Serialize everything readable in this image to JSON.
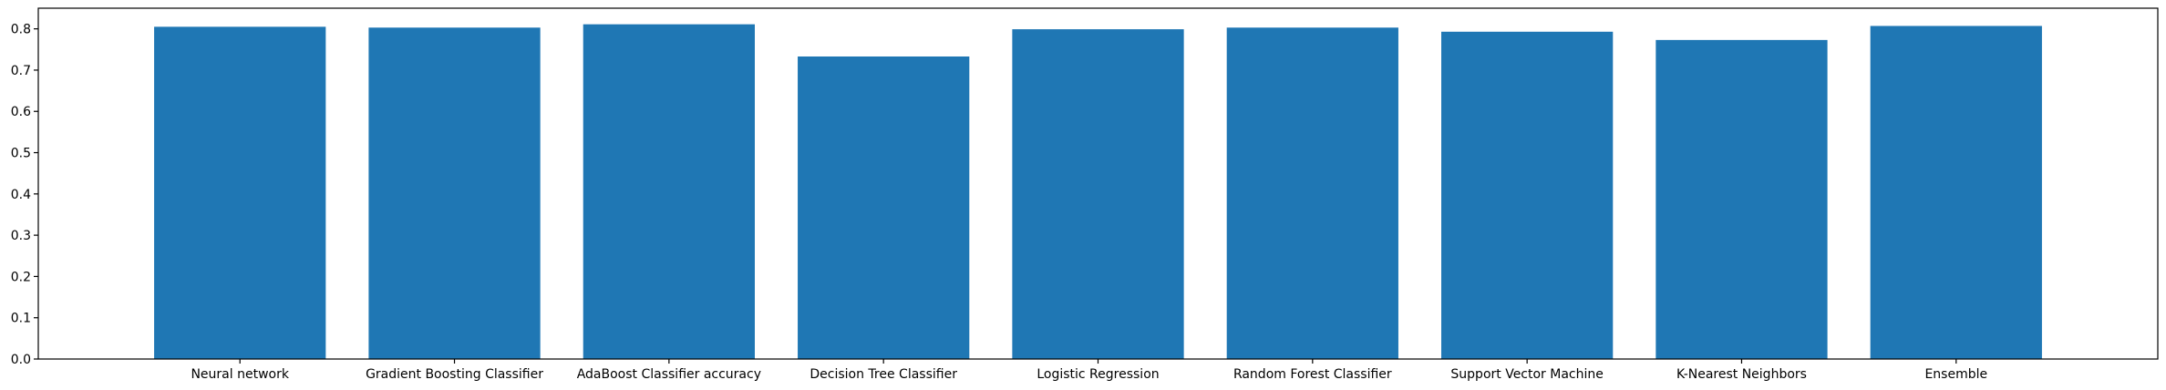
{
  "chart_data": {
    "type": "bar",
    "title": "",
    "xlabel": "",
    "ylabel": "",
    "categories": [
      "Neural network",
      "Gradient Boosting Classifier",
      "AdaBoost Classifier accuracy",
      "Decision Tree Classifier",
      "Logistic Regression",
      "Random Forest Classifier",
      "Support Vector Machine",
      "K-Nearest Neighbors",
      "Ensemble"
    ],
    "values": [
      0.805,
      0.803,
      0.811,
      0.733,
      0.799,
      0.803,
      0.793,
      0.773,
      0.807
    ],
    "ylim": [
      0,
      0.85
    ],
    "yticks": [
      0.0,
      0.1,
      0.2,
      0.3,
      0.4,
      0.5,
      0.6,
      0.7,
      0.8
    ],
    "ytick_labels": [
      "0.0",
      "0.1",
      "0.2",
      "0.3",
      "0.4",
      "0.5",
      "0.6",
      "0.7",
      "0.8"
    ],
    "bar_color": "#1f77b4",
    "grid": false,
    "legend": "none"
  }
}
